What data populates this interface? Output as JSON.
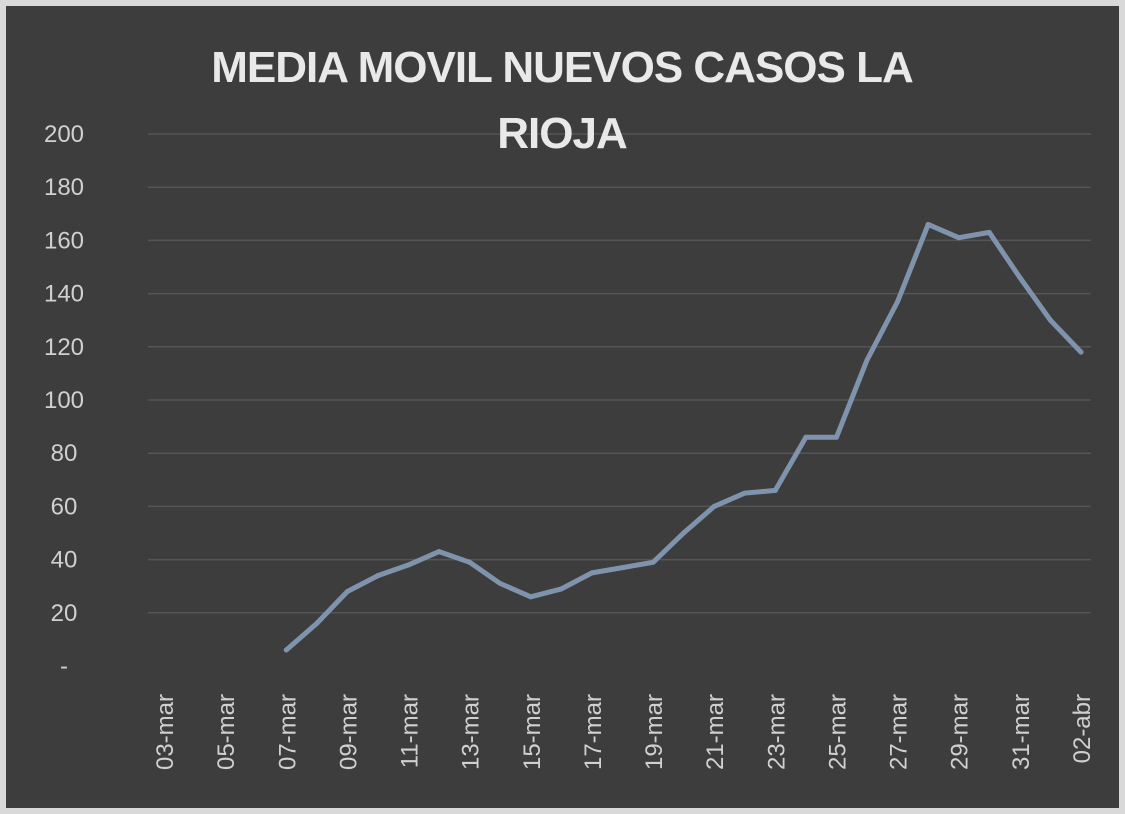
{
  "chart_data": {
    "type": "line",
    "title": "MEDIA MOVIL NUEVOS CASOS LA RIOJA",
    "title_lines": [
      "MEDIA MOVIL NUEVOS CASOS LA",
      "RIOJA"
    ],
    "xlabel": "",
    "ylabel": "",
    "ylim": [
      0,
      200
    ],
    "yticks": [
      0,
      20,
      40,
      60,
      80,
      100,
      120,
      140,
      160,
      180,
      200
    ],
    "ytick_labels": [
      "-",
      "20",
      "40",
      "60",
      "80",
      "100",
      "120",
      "140",
      "160",
      "180",
      "200"
    ],
    "grid": true,
    "legend": "none",
    "line_color": "#7f93ad",
    "background": "#3d3d3d",
    "x": [
      "03-mar",
      "04-mar",
      "05-mar",
      "06-mar",
      "07-mar",
      "08-mar",
      "09-mar",
      "10-mar",
      "11-mar",
      "12-mar",
      "13-mar",
      "14-mar",
      "15-mar",
      "16-mar",
      "17-mar",
      "18-mar",
      "19-mar",
      "20-mar",
      "21-mar",
      "22-mar",
      "23-mar",
      "24-mar",
      "25-mar",
      "26-mar",
      "27-mar",
      "28-mar",
      "29-mar",
      "30-mar",
      "31-mar",
      "01-abr",
      "02-abr"
    ],
    "xtick_labels": [
      "03-mar",
      "05-mar",
      "07-mar",
      "09-mar",
      "11-mar",
      "13-mar",
      "15-mar",
      "17-mar",
      "19-mar",
      "21-mar",
      "23-mar",
      "25-mar",
      "27-mar",
      "29-mar",
      "31-mar",
      "02-abr"
    ],
    "series": [
      {
        "values": [
          null,
          null,
          null,
          null,
          6,
          16,
          28,
          34,
          38,
          43,
          39,
          31,
          26,
          29,
          35,
          37,
          39,
          50,
          60,
          65,
          66,
          86,
          86,
          115,
          137,
          166,
          161,
          163,
          146,
          130,
          118
        ]
      }
    ]
  }
}
